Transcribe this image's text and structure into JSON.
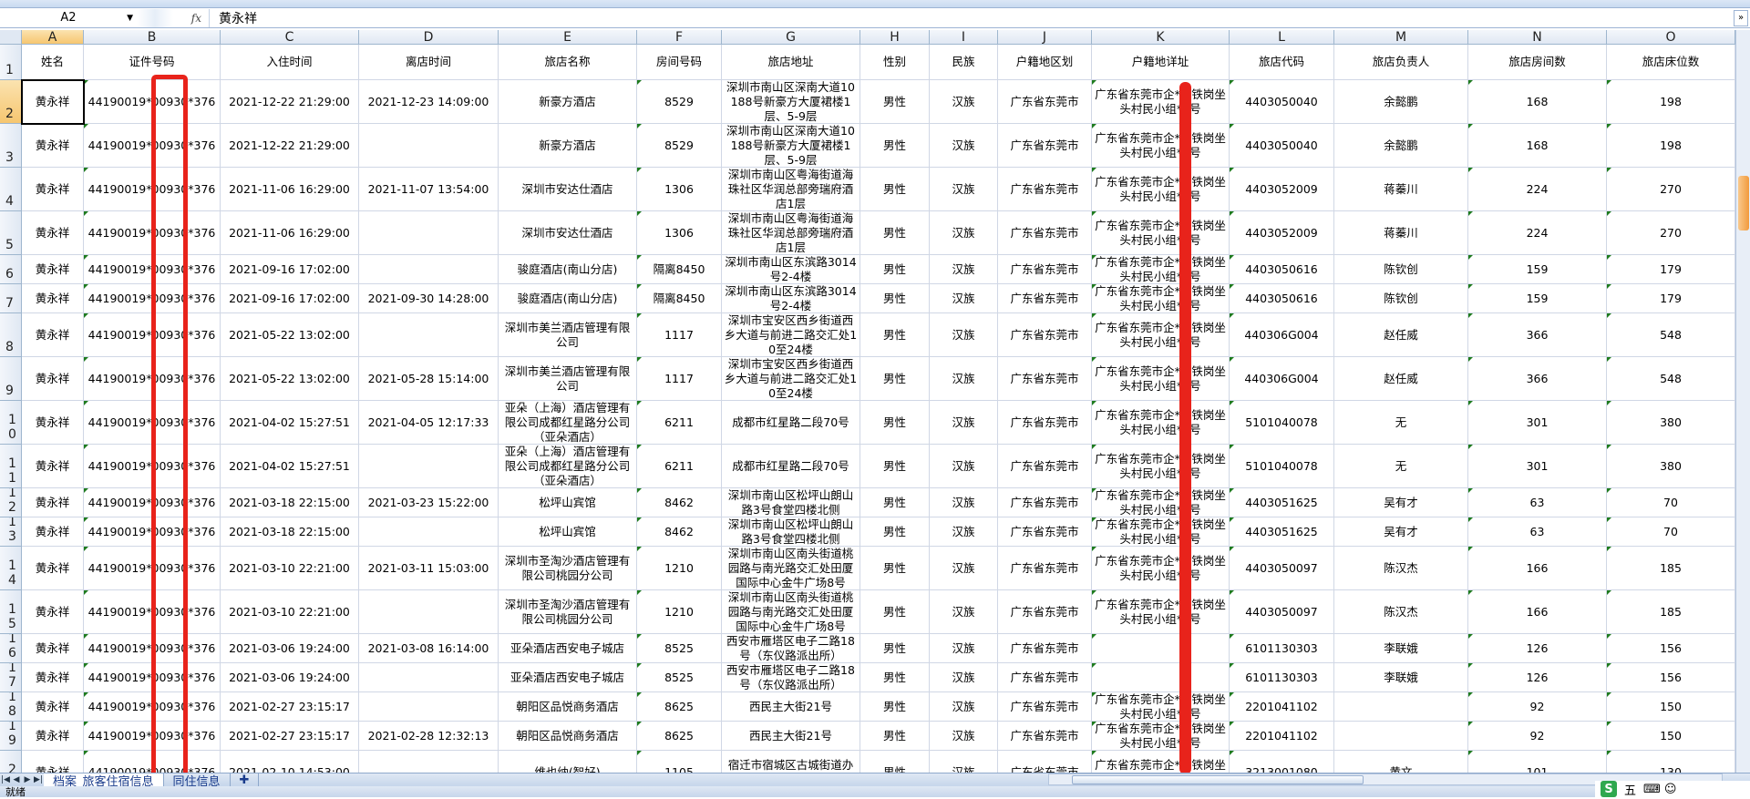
{
  "formula_bar": {
    "name_box": "A2",
    "fx_label": "fx",
    "value": "黄永祥"
  },
  "column_letters": [
    "A",
    "B",
    "C",
    "D",
    "E",
    "F",
    "G",
    "H",
    "I",
    "J",
    "K",
    "L",
    "M",
    "N",
    "O"
  ],
  "header_row": [
    "姓名",
    "证件号码",
    "入住时间",
    "离店时间",
    "旅店名称",
    "房间号码",
    "旅店地址",
    "性别",
    "民族",
    "户籍地区划",
    "户籍地详址",
    "旅店代码",
    "旅店负责人",
    "旅店房间数",
    "旅店床位数"
  ],
  "rows": [
    [
      "黄永祥",
      "44190019*00930*376",
      "2021-12-22 21:29:00",
      "2021-12-23 14:09:00",
      "新豪方酒店",
      "8529",
      "深圳市南山区深南大道10188号新豪方大厦裙楼1层、5-9层",
      "男性",
      "汉族",
      "广东省东莞市",
      "广东省东莞市企*镇铁岗坐头村民小组*0号",
      "4403050040",
      "余懿鹏",
      "168",
      "198"
    ],
    [
      "黄永祥",
      "44190019*00930*376",
      "2021-12-22 21:29:00",
      "",
      "新豪方酒店",
      "8529",
      "深圳市南山区深南大道10188号新豪方大厦裙楼1层、5-9层",
      "男性",
      "汉族",
      "广东省东莞市",
      "广东省东莞市企*镇铁岗坐头村民小组*0号",
      "4403050040",
      "余懿鹏",
      "168",
      "198"
    ],
    [
      "黄永祥",
      "44190019*00930*376",
      "2021-11-06 16:29:00",
      "2021-11-07 13:54:00",
      "深圳市安达仕酒店",
      "1306",
      "深圳市南山区粤海街道海珠社区华润总部旁瑞府酒店1层",
      "男性",
      "汉族",
      "广东省东莞市",
      "广东省东莞市企*镇铁岗坐头村民小组*0号",
      "4403052009",
      "蒋蓁川",
      "224",
      "270"
    ],
    [
      "黄永祥",
      "44190019*00930*376",
      "2021-11-06 16:29:00",
      "",
      "深圳市安达仕酒店",
      "1306",
      "深圳市南山区粤海街道海珠社区华润总部旁瑞府酒店1层",
      "男性",
      "汉族",
      "广东省东莞市",
      "广东省东莞市企*镇铁岗坐头村民小组*0号",
      "4403052009",
      "蒋蓁川",
      "224",
      "270"
    ],
    [
      "黄永祥",
      "44190019*00930*376",
      "2021-09-16 17:02:00",
      "",
      "骏庭酒店(南山分店)",
      "隔离8450",
      "深圳市南山区东滨路3014号2-4楼",
      "男性",
      "汉族",
      "广东省东莞市",
      "广东省东莞市企*镇铁岗坐头村民小组*0号",
      "4403050616",
      "陈钦创",
      "159",
      "179"
    ],
    [
      "黄永祥",
      "44190019*00930*376",
      "2021-09-16 17:02:00",
      "2021-09-30 14:28:00",
      "骏庭酒店(南山分店)",
      "隔离8450",
      "深圳市南山区东滨路3014号2-4楼",
      "男性",
      "汉族",
      "广东省东莞市",
      "广东省东莞市企*镇铁岗坐头村民小组*0号",
      "4403050616",
      "陈钦创",
      "159",
      "179"
    ],
    [
      "黄永祥",
      "44190019*00930*376",
      "2021-05-22 13:02:00",
      "",
      "深圳市美兰酒店管理有限公司",
      "1117",
      "深圳市宝安区西乡街道西乡大道与前进二路交汇处10至24楼",
      "男性",
      "汉族",
      "广东省东莞市",
      "广东省东莞市企*镇铁岗坐头村民小组*0号",
      "440306G004",
      "赵任威",
      "366",
      "548"
    ],
    [
      "黄永祥",
      "44190019*00930*376",
      "2021-05-22 13:02:00",
      "2021-05-28 15:14:00",
      "深圳市美兰酒店管理有限公司",
      "1117",
      "深圳市宝安区西乡街道西乡大道与前进二路交汇处10至24楼",
      "男性",
      "汉族",
      "广东省东莞市",
      "广东省东莞市企*镇铁岗坐头村民小组*0号",
      "440306G004",
      "赵任威",
      "366",
      "548"
    ],
    [
      "黄永祥",
      "44190019*00930*376",
      "2021-04-02 15:27:51",
      "2021-04-05 12:17:33",
      "亚朵（上海）酒店管理有限公司成都红星路分公司（亚朵酒店）",
      "6211",
      "成都市红星路二段70号",
      "男性",
      "汉族",
      "广东省东莞市",
      "广东省东莞市企*镇铁岗坐头村民小组*0号",
      "5101040078",
      "无",
      "301",
      "380"
    ],
    [
      "黄永祥",
      "44190019*00930*376",
      "2021-04-02 15:27:51",
      "",
      "亚朵（上海）酒店管理有限公司成都红星路分公司（亚朵酒店）",
      "6211",
      "成都市红星路二段70号",
      "男性",
      "汉族",
      "广东省东莞市",
      "广东省东莞市企*镇铁岗坐头村民小组*0号",
      "5101040078",
      "无",
      "301",
      "380"
    ],
    [
      "黄永祥",
      "44190019*00930*376",
      "2021-03-18 22:15:00",
      "2021-03-23 15:22:00",
      "松坪山宾馆",
      "8462",
      "深圳市南山区松坪山朗山路3号食堂四楼北侧",
      "男性",
      "汉族",
      "广东省东莞市",
      "广东省东莞市企*镇铁岗坐头村民小组*0号",
      "4403051625",
      "吴有才",
      "63",
      "70"
    ],
    [
      "黄永祥",
      "44190019*00930*376",
      "2021-03-18 22:15:00",
      "",
      "松坪山宾馆",
      "8462",
      "深圳市南山区松坪山朗山路3号食堂四楼北侧",
      "男性",
      "汉族",
      "广东省东莞市",
      "广东省东莞市企*镇铁岗坐头村民小组*0号",
      "4403051625",
      "吴有才",
      "63",
      "70"
    ],
    [
      "黄永祥",
      "44190019*00930*376",
      "2021-03-10 22:21:00",
      "2021-03-11 15:03:00",
      "深圳市圣淘沙酒店管理有限公司桃园分公司",
      "1210",
      "深圳市南山区南头街道桃园路与南光路交汇处田厦国际中心金牛广场8号",
      "男性",
      "汉族",
      "广东省东莞市",
      "广东省东莞市企*镇铁岗坐头村民小组*0号",
      "4403050097",
      "陈汉杰",
      "166",
      "185"
    ],
    [
      "黄永祥",
      "44190019*00930*376",
      "2021-03-10 22:21:00",
      "",
      "深圳市圣淘沙酒店管理有限公司桃园分公司",
      "1210",
      "深圳市南山区南头街道桃园路与南光路交汇处田厦国际中心金牛广场8号",
      "男性",
      "汉族",
      "广东省东莞市",
      "广东省东莞市企*镇铁岗坐头村民小组*0号",
      "4403050097",
      "陈汉杰",
      "166",
      "185"
    ],
    [
      "黄永祥",
      "44190019*00930*376",
      "2021-03-06 19:24:00",
      "2021-03-08 16:14:00",
      "亚朵酒店西安电子城店",
      "8525",
      "西安市雁塔区电子二路18号（东仪路派出所）",
      "男性",
      "汉族",
      "广东省东莞市",
      "",
      "6101130303",
      "李联娥",
      "126",
      "156"
    ],
    [
      "黄永祥",
      "44190019*00930*376",
      "2021-03-06 19:24:00",
      "",
      "亚朵酒店西安电子城店",
      "8525",
      "西安市雁塔区电子二路18号（东仪路派出所）",
      "男性",
      "汉族",
      "广东省东莞市",
      "",
      "6101130303",
      "李联娥",
      "126",
      "156"
    ],
    [
      "黄永祥",
      "44190019*00930*376",
      "2021-02-27 23:15:17",
      "",
      "朝阳区品悦商务酒店",
      "8625",
      "西民主大街21号",
      "男性",
      "汉族",
      "广东省东莞市",
      "广东省东莞市企*镇铁岗坐头村民小组*0号",
      "2201041102",
      "",
      "92",
      "150"
    ],
    [
      "黄永祥",
      "44190019*00930*376",
      "2021-02-27 23:15:17",
      "2021-02-28 12:32:13",
      "朝阳区品悦商务酒店",
      "8625",
      "西民主大街21号",
      "男性",
      "汉族",
      "广东省东莞市",
      "广东省东莞市企*镇铁岗坐头村民小组*0号",
      "2201041102",
      "",
      "92",
      "150"
    ],
    [
      "黄永祥",
      "44190019*00930*376",
      "2021-02-10 14:53:00",
      "",
      "维也纳(智好)",
      "1105",
      "宿迁市宿城区古城街道办公大楼（地上北一层、地",
      "男性",
      "汉族",
      "广东省东莞市",
      "广东省东莞市企*镇铁岗坐头村民小组*0号",
      "3213001080",
      "黄文",
      "101",
      "130"
    ]
  ],
  "sheet_tabs": [
    {
      "label": "档案_旅客住宿信息",
      "active": true
    },
    {
      "label": "同住信息",
      "active": false
    }
  ],
  "status_bar": {
    "status": "就绪",
    "ime_label": "S",
    "ime_mode": "五"
  },
  "colors": {
    "annotation_red": "#e8231b",
    "selected_header": "#f6c670",
    "text_marker_green": "#1e7b1e"
  }
}
